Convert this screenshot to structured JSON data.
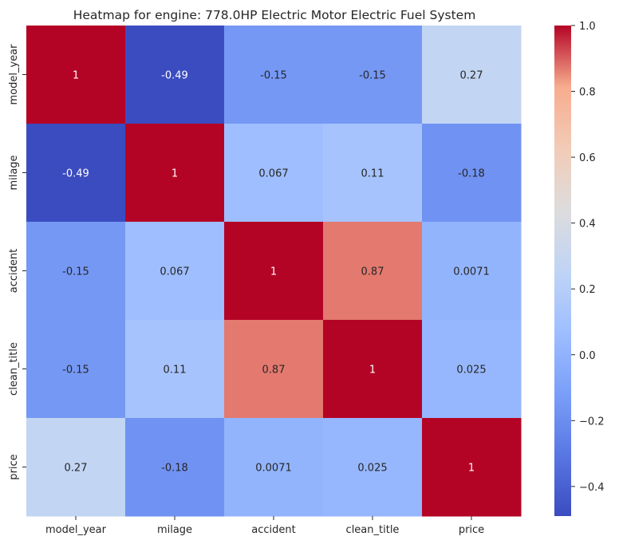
{
  "chart_data": {
    "type": "heatmap",
    "title": "Heatmap for engine: 778.0HP Electric Motor Electric Fuel System",
    "x_labels": [
      "model_year",
      "milage",
      "accident",
      "clean_title",
      "price"
    ],
    "y_labels": [
      "model_year",
      "milage",
      "accident",
      "clean_title",
      "price"
    ],
    "values": [
      [
        1,
        -0.49,
        -0.15,
        -0.15,
        0.27
      ],
      [
        -0.49,
        1,
        0.067,
        0.11,
        -0.18
      ],
      [
        -0.15,
        0.067,
        1,
        0.87,
        0.0071
      ],
      [
        -0.15,
        0.11,
        0.87,
        1,
        0.025
      ],
      [
        0.27,
        -0.18,
        0.0071,
        0.025,
        1
      ]
    ],
    "cell_labels": [
      [
        "1",
        "-0.49",
        "-0.15",
        "-0.15",
        "0.27"
      ],
      [
        "-0.49",
        "1",
        "0.067",
        "0.11",
        "-0.18"
      ],
      [
        "-0.15",
        "0.067",
        "1",
        "0.87",
        "0.0071"
      ],
      [
        "-0.15",
        "0.11",
        "0.87",
        "1",
        "0.025"
      ],
      [
        "0.27",
        "-0.18",
        "0.0071",
        "0.025",
        "1"
      ]
    ],
    "colormap": "coolwarm",
    "colorbar": {
      "min": -0.49,
      "max": 1.0,
      "ticks": [
        -0.4,
        -0.2,
        0.0,
        0.2,
        0.4,
        0.6,
        0.8,
        1.0
      ],
      "tick_labels": [
        "−0.4",
        "−0.2",
        "0.0",
        "0.2",
        "0.4",
        "0.6",
        "0.8",
        "1.0"
      ]
    }
  }
}
